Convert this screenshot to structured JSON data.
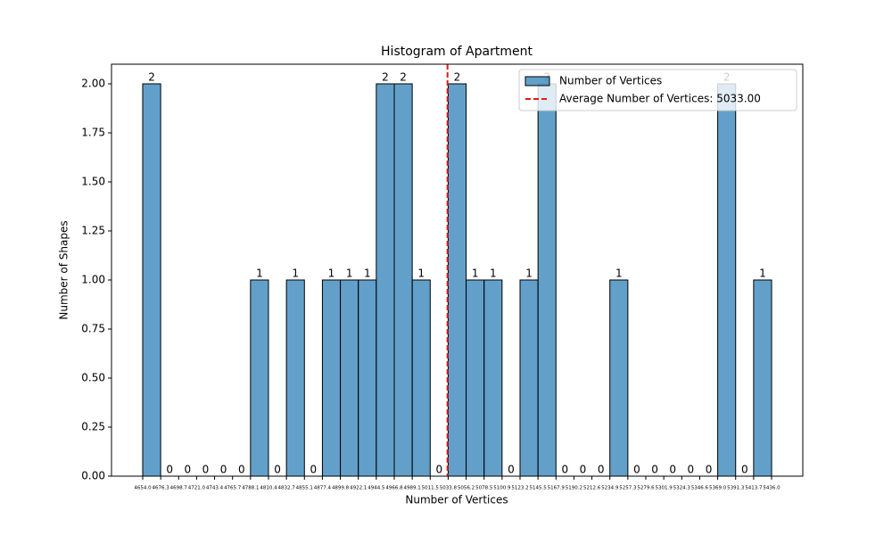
{
  "chart_data": {
    "type": "histogram",
    "title": "Histogram of Apartment",
    "xlabel": "Number of Vertices",
    "ylabel": "Number of Shapes",
    "series_name": "Number of Vertices",
    "color": "#1f77b4",
    "bins": [
      4654.0,
      4676.34,
      4698.69,
      4721.03,
      4743.37,
      4765.71,
      4788.06,
      4810.4,
      4832.74,
      4855.09,
      4877.43,
      4899.77,
      4922.11,
      4944.46,
      4966.8,
      4989.14,
      5011.49,
      5033.83,
      5056.17,
      5078.51,
      5100.86,
      5123.2,
      5145.54,
      5167.89,
      5190.23,
      5212.57,
      5234.91,
      5257.26,
      5279.6,
      5301.94,
      5324.29,
      5346.63,
      5368.97,
      5391.31,
      5413.66,
      5436.0
    ],
    "values": [
      2,
      0,
      0,
      0,
      0,
      0,
      1,
      0,
      1,
      0,
      1,
      1,
      1,
      2,
      2,
      1,
      0,
      2,
      1,
      1,
      0,
      1,
      2,
      0,
      0,
      0,
      1,
      0,
      0,
      0,
      0,
      0,
      2,
      0,
      1
    ],
    "mean_line": {
      "value": 5033.0,
      "label": "Average Number of Vertices: 5033.00",
      "color": "#e41a1c"
    },
    "xlim": [
      4615.2,
      5474.8
    ],
    "ylim": [
      0,
      2.1
    ],
    "xticks": [
      {
        "value": 4654.0,
        "label": "4654.0"
      },
      {
        "value": 4676.34,
        "label": "4676.3"
      },
      {
        "value": 4698.69,
        "label": "4698.7"
      },
      {
        "value": 4721.03,
        "label": "4721.0"
      },
      {
        "value": 4743.37,
        "label": "4743.4"
      },
      {
        "value": 4765.71,
        "label": "4765.7"
      },
      {
        "value": 4788.06,
        "label": "4788.1"
      },
      {
        "value": 4810.4,
        "label": "4810.4"
      },
      {
        "value": 4832.74,
        "label": "4832.7"
      },
      {
        "value": 4855.09,
        "label": "4855.1"
      },
      {
        "value": 4877.43,
        "label": "4877.4"
      },
      {
        "value": 4899.77,
        "label": "4899.8"
      },
      {
        "value": 4922.11,
        "label": "4922.1"
      },
      {
        "value": 4944.46,
        "label": "4944.5"
      },
      {
        "value": 4966.8,
        "label": "4966.8"
      },
      {
        "value": 4989.14,
        "label": "4989.1"
      },
      {
        "value": 5011.49,
        "label": "5011.5"
      },
      {
        "value": 5033.83,
        "label": "5033.8"
      },
      {
        "value": 5056.17,
        "label": "5056.2"
      },
      {
        "value": 5078.51,
        "label": "5078.5"
      },
      {
        "value": 5100.86,
        "label": "5100.9"
      },
      {
        "value": 5123.2,
        "label": "5123.2"
      },
      {
        "value": 5145.54,
        "label": "5145.5"
      },
      {
        "value": 5167.89,
        "label": "5167.9"
      },
      {
        "value": 5190.23,
        "label": "5190.2"
      },
      {
        "value": 5212.57,
        "label": "5212.6"
      },
      {
        "value": 5234.91,
        "label": "5234.9"
      },
      {
        "value": 5257.26,
        "label": "5257.3"
      },
      {
        "value": 5279.6,
        "label": "5279.6"
      },
      {
        "value": 5301.94,
        "label": "5301.9"
      },
      {
        "value": 5324.29,
        "label": "5324.3"
      },
      {
        "value": 5346.63,
        "label": "5346.6"
      },
      {
        "value": 5368.97,
        "label": "5369.0"
      },
      {
        "value": 5391.31,
        "label": "5391.3"
      },
      {
        "value": 5413.66,
        "label": "5413.7"
      },
      {
        "value": 5436.0,
        "label": "5436.0"
      }
    ],
    "yticks": [
      {
        "value": 0,
        "label": "0.00"
      },
      {
        "value": 0.25,
        "label": "0.25"
      },
      {
        "value": 0.5,
        "label": "0.50"
      },
      {
        "value": 0.75,
        "label": "0.75"
      },
      {
        "value": 1.0,
        "label": "1.00"
      },
      {
        "value": 1.25,
        "label": "1.25"
      },
      {
        "value": 1.5,
        "label": "1.50"
      },
      {
        "value": 1.75,
        "label": "1.75"
      },
      {
        "value": 2.0,
        "label": "2.00"
      }
    ],
    "legend_position": "upper right"
  }
}
